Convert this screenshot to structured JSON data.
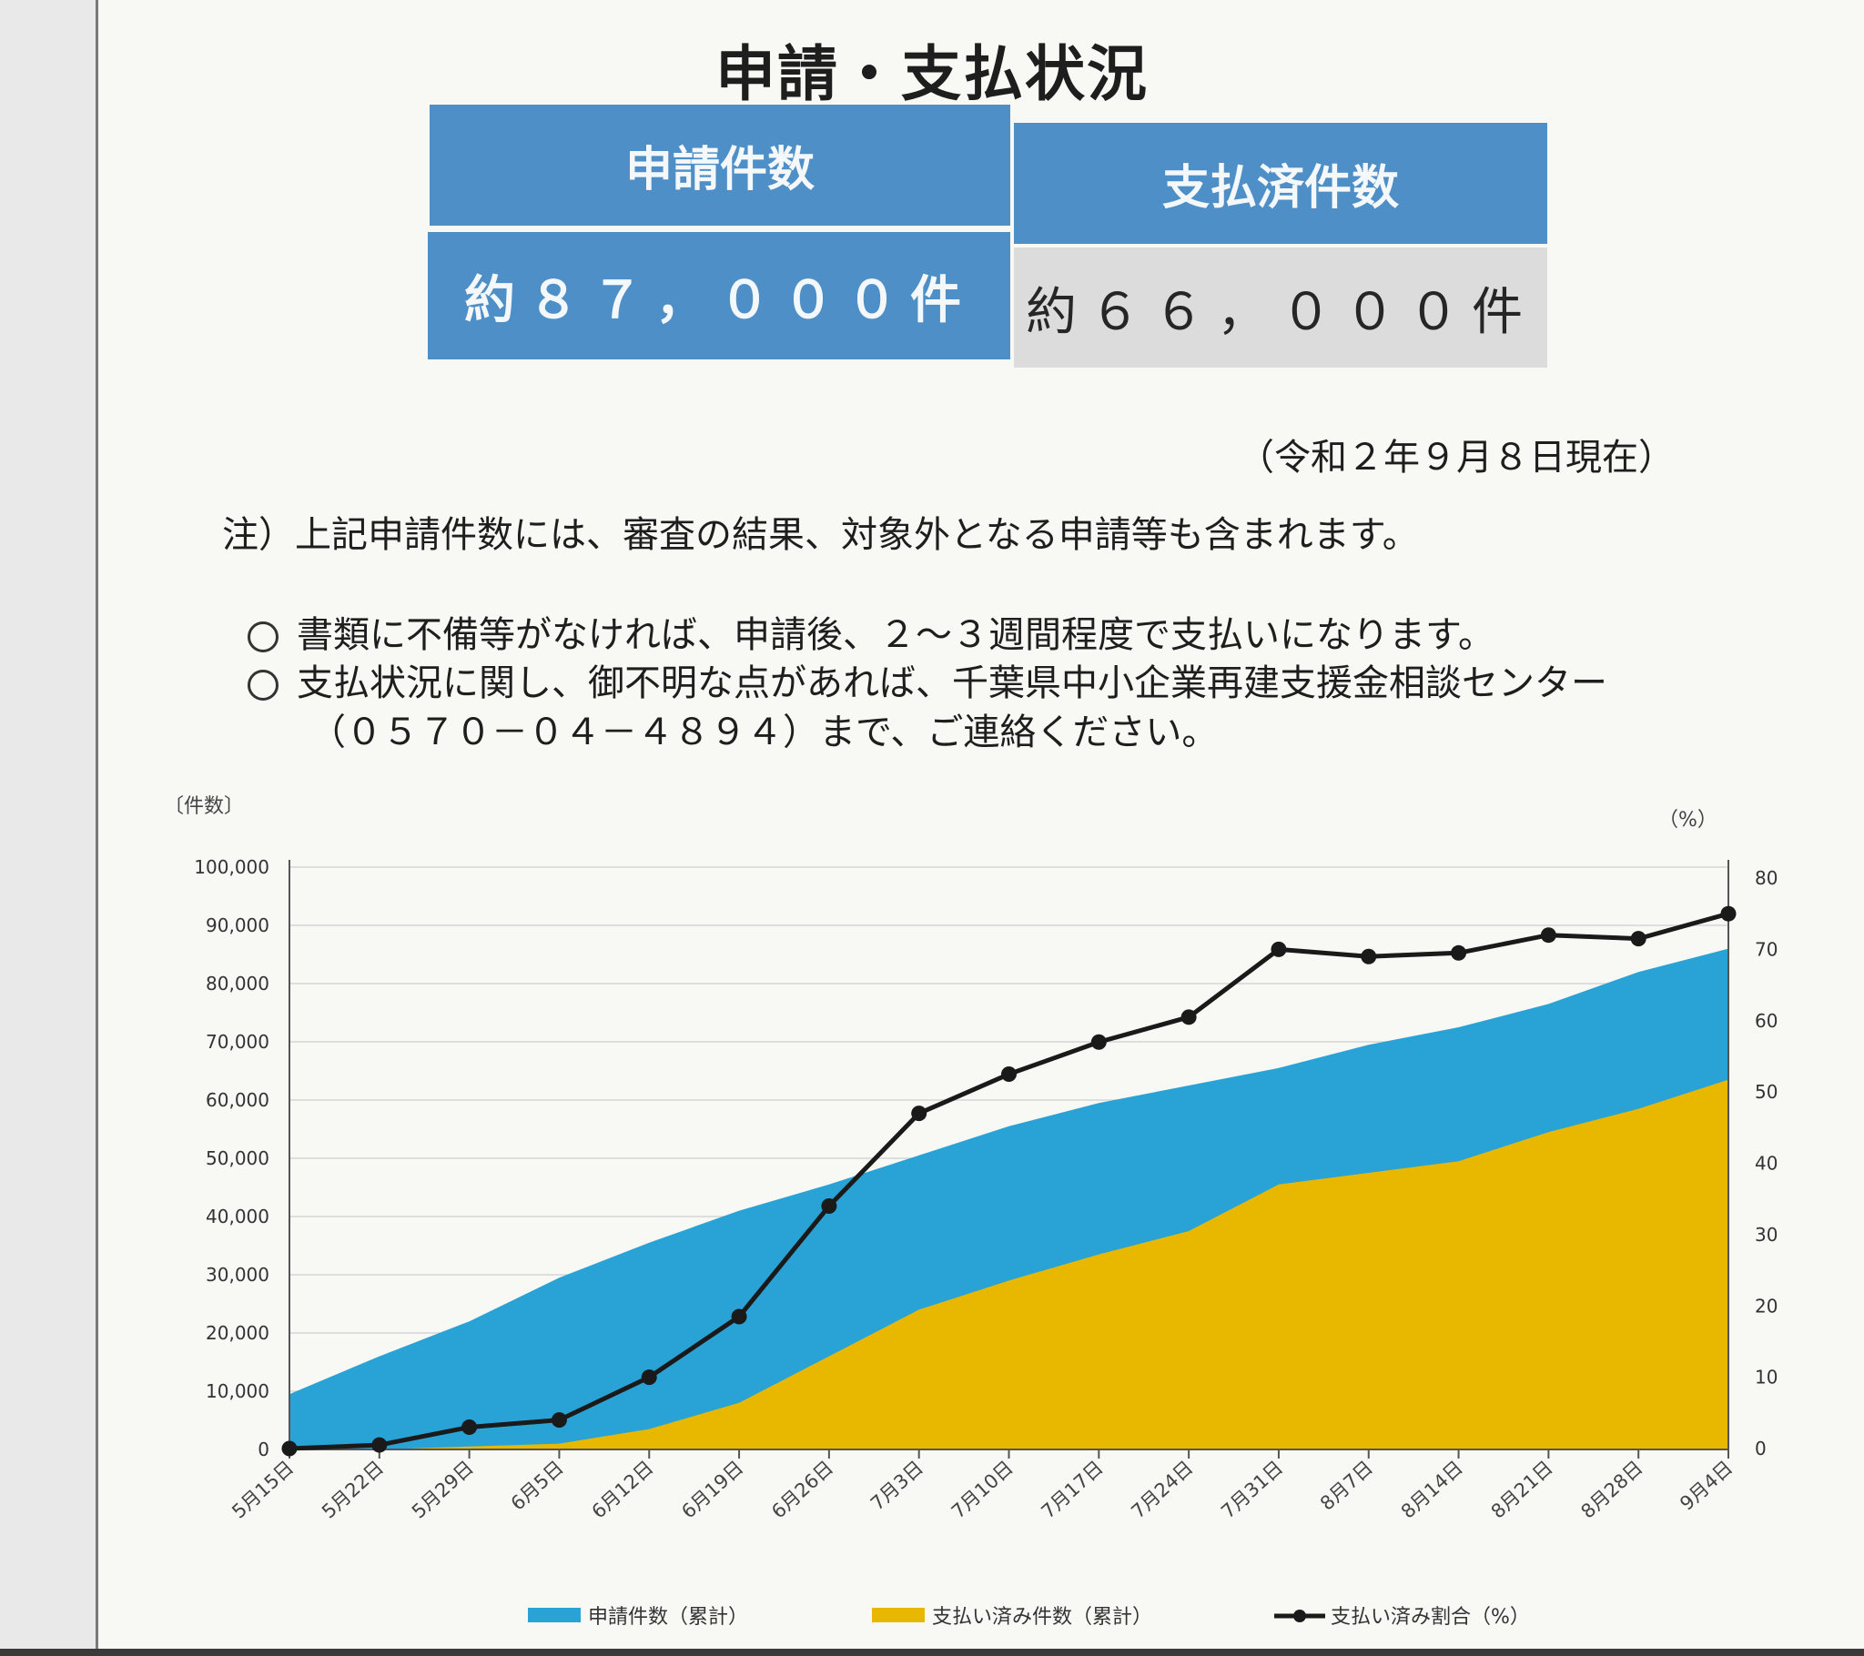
{
  "title": "申請・支払状況",
  "summary": {
    "applications_label": "申請件数",
    "paid_label": "支払済件数",
    "applications_value": "約８７，０００件",
    "paid_value": "約６６，０００件"
  },
  "as_of": "（令和２年９月８日現在）",
  "notes": {
    "note1": "注）上記申請件数には、審査の結果、対象外となる申請等も含まれます。",
    "bullet1": "書類に不備等がなければ、申請後、２～３週間程度で支払いになります。",
    "bullet2_line1": "支払状況に関し、御不明な点があれば、千葉県中小企業再建支援金相談センター",
    "bullet2_line2": "（０５７０－０４－４８９４）まで、ご連絡ください。"
  },
  "colors": {
    "header_blue": "#4d8fc6",
    "applications_area": "#29a3d6",
    "paid_area": "#e8b800",
    "ratio_line": "#1a1a1a"
  },
  "chart_data": {
    "type": "area",
    "categories": [
      "5月15日",
      "5月22日",
      "5月29日",
      "6月5日",
      "6月12日",
      "6月19日",
      "6月26日",
      "7月3日",
      "7月10日",
      "7月17日",
      "7月24日",
      "7月31日",
      "8月7日",
      "8月14日",
      "8月21日",
      "8月28日",
      "9月4日"
    ],
    "left_axis_label": "〔件数〕",
    "right_axis_label": "（%）",
    "left_ylim": [
      0,
      100000
    ],
    "left_ticks": [
      "100,000",
      "90,000",
      "80,000",
      "70,000",
      "60,000",
      "50,000",
      "40,000",
      "30,000",
      "20,000",
      "10,000",
      "0"
    ],
    "right_ylim": [
      0,
      80
    ],
    "right_ticks": [
      "80",
      "70",
      "60",
      "50",
      "40",
      "30",
      "20",
      "10",
      "0"
    ],
    "series": [
      {
        "name": "申請件数（累計）",
        "axis": "left",
        "kind": "area",
        "values": [
          9500,
          16000,
          22000,
          29500,
          35500,
          41000,
          45500,
          50500,
          55500,
          59500,
          62500,
          65500,
          69500,
          72500,
          76500,
          82000,
          86000
        ]
      },
      {
        "name": "支払い済み件数（累計）",
        "axis": "left",
        "kind": "area",
        "values": [
          0,
          0,
          500,
          1000,
          3500,
          8000,
          16000,
          24000,
          29000,
          33500,
          37500,
          45500,
          47500,
          49500,
          54500,
          58500,
          63500
        ]
      },
      {
        "name": "支払い済み割合（%）",
        "axis": "right",
        "kind": "line",
        "values": [
          0,
          0.5,
          3,
          4,
          10,
          18.5,
          34,
          47,
          52.5,
          57,
          60.5,
          70,
          69,
          69.5,
          72,
          71.5,
          75
        ]
      }
    ],
    "grid": true,
    "legend_position": "bottom"
  }
}
